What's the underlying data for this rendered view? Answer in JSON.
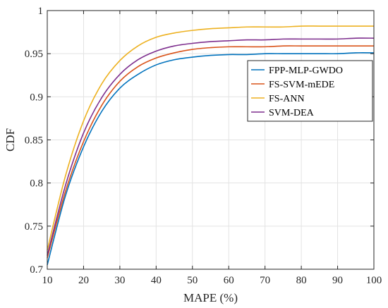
{
  "chart_data": {
    "type": "line",
    "xlabel": "MAPE (%)",
    "ylabel": "CDF",
    "xlim": [
      10,
      100
    ],
    "ylim": [
      0.7,
      1.0
    ],
    "xticks": [
      "10",
      "20",
      "30",
      "40",
      "50",
      "60",
      "70",
      "80",
      "90",
      "100"
    ],
    "yticks": [
      "0.7",
      "0.75",
      "0.8",
      "0.85",
      "0.9",
      "0.95",
      "1"
    ],
    "grid": true,
    "legend_position": "center-right",
    "x": [
      10,
      15,
      20,
      25,
      30,
      35,
      40,
      45,
      50,
      55,
      60,
      65,
      70,
      75,
      80,
      85,
      90,
      95,
      100
    ],
    "series": [
      {
        "name": "FPP-MLP-GWDO",
        "color": "#0072BD",
        "values": [
          0.705,
          0.785,
          0.842,
          0.883,
          0.91,
          0.926,
          0.937,
          0.943,
          0.946,
          0.948,
          0.949,
          0.949,
          0.95,
          0.95,
          0.95,
          0.95,
          0.95,
          0.951,
          0.951
        ]
      },
      {
        "name": "FS-SVM-mEDE",
        "color": "#D95319",
        "values": [
          0.713,
          0.79,
          0.848,
          0.89,
          0.918,
          0.935,
          0.945,
          0.951,
          0.955,
          0.957,
          0.958,
          0.958,
          0.958,
          0.959,
          0.959,
          0.959,
          0.959,
          0.959,
          0.959
        ]
      },
      {
        "name": "FS-ANN",
        "color": "#EDB120",
        "values": [
          0.722,
          0.808,
          0.872,
          0.915,
          0.942,
          0.959,
          0.969,
          0.974,
          0.977,
          0.979,
          0.98,
          0.981,
          0.981,
          0.981,
          0.982,
          0.982,
          0.982,
          0.982,
          0.982
        ]
      },
      {
        "name": "SVM-DEA",
        "color": "#7E2F8E",
        "values": [
          0.716,
          0.797,
          0.858,
          0.899,
          0.926,
          0.943,
          0.953,
          0.959,
          0.962,
          0.964,
          0.965,
          0.966,
          0.966,
          0.967,
          0.967,
          0.967,
          0.967,
          0.968,
          0.968
        ]
      }
    ]
  }
}
